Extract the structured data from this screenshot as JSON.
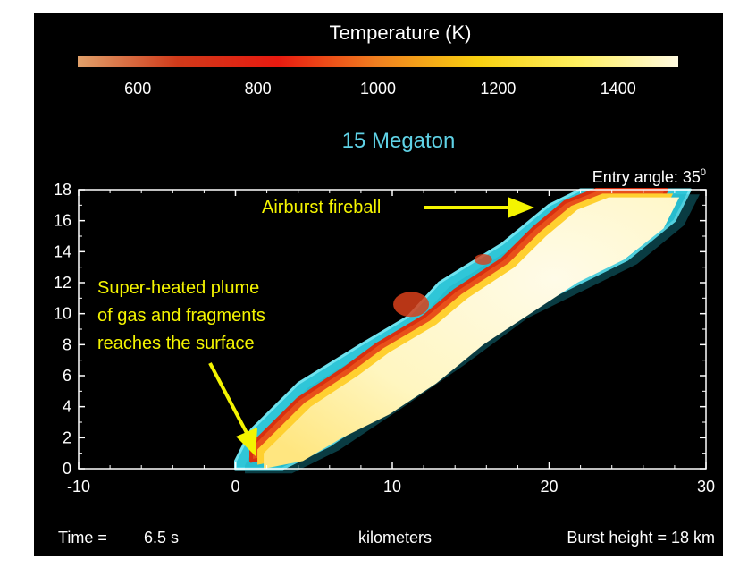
{
  "chart_data": {
    "type": "heatmap",
    "colorbar": {
      "title": "Temperature (K)",
      "range": [
        500,
        1500
      ],
      "ticks": [
        600,
        800,
        1000,
        1200,
        1400
      ],
      "colors": [
        "#e0a06a",
        "#d03a1a",
        "#e81a10",
        "#f08020",
        "#f8d010",
        "#fff060",
        "#fffae0"
      ]
    },
    "title": "15 Megaton",
    "annotation_entry": "Entry angle: 35",
    "annotation_entry_sup": "0",
    "xlabel": "kilometers",
    "ylabel": "",
    "xlim": [
      -10,
      30
    ],
    "ylim": [
      0,
      18
    ],
    "xticks": [
      -10,
      0,
      10,
      20,
      30
    ],
    "yticks": [
      0,
      2,
      4,
      6,
      8,
      10,
      12,
      14,
      16,
      18
    ],
    "labels": {
      "fireball": "Airburst fireball",
      "plume_line1": "Super-heated plume",
      "plume_line2": "of gas and fragments",
      "plume_line3": "reaches the surface"
    },
    "plume_outline_cyan": [
      [
        0,
        0.5
      ],
      [
        1,
        2.5
      ],
      [
        4,
        5.5
      ],
      [
        8,
        8
      ],
      [
        11,
        9.8
      ],
      [
        13,
        12
      ],
      [
        17,
        14.5
      ],
      [
        20,
        17
      ],
      [
        22,
        18
      ],
      [
        29,
        18
      ],
      [
        28,
        16
      ],
      [
        25,
        13.5
      ],
      [
        22,
        12
      ],
      [
        18,
        10
      ],
      [
        14,
        7
      ],
      [
        10,
        4.2
      ],
      [
        6,
        1.5
      ],
      [
        3,
        0
      ],
      [
        0,
        0
      ]
    ],
    "plume_core_hot": [
      [
        1,
        1.5
      ],
      [
        4,
        4.5
      ],
      [
        7,
        6.5
      ],
      [
        9,
        8
      ],
      [
        12,
        9.8
      ],
      [
        14,
        11.5
      ],
      [
        17,
        13.5
      ],
      [
        19,
        15.5
      ],
      [
        21,
        17.2
      ],
      [
        23,
        18
      ],
      [
        27.5,
        18
      ],
      [
        26.5,
        16
      ],
      [
        24,
        14
      ],
      [
        21,
        12.5
      ],
      [
        18,
        10.5
      ],
      [
        15,
        8.5
      ],
      [
        12,
        6
      ],
      [
        9,
        4
      ],
      [
        6,
        2.5
      ],
      [
        3.5,
        1
      ],
      [
        1,
        0.5
      ]
    ],
    "time_label": "Time =",
    "time_value": "6.5 s",
    "burst_height": "Burst height = 18 km"
  }
}
